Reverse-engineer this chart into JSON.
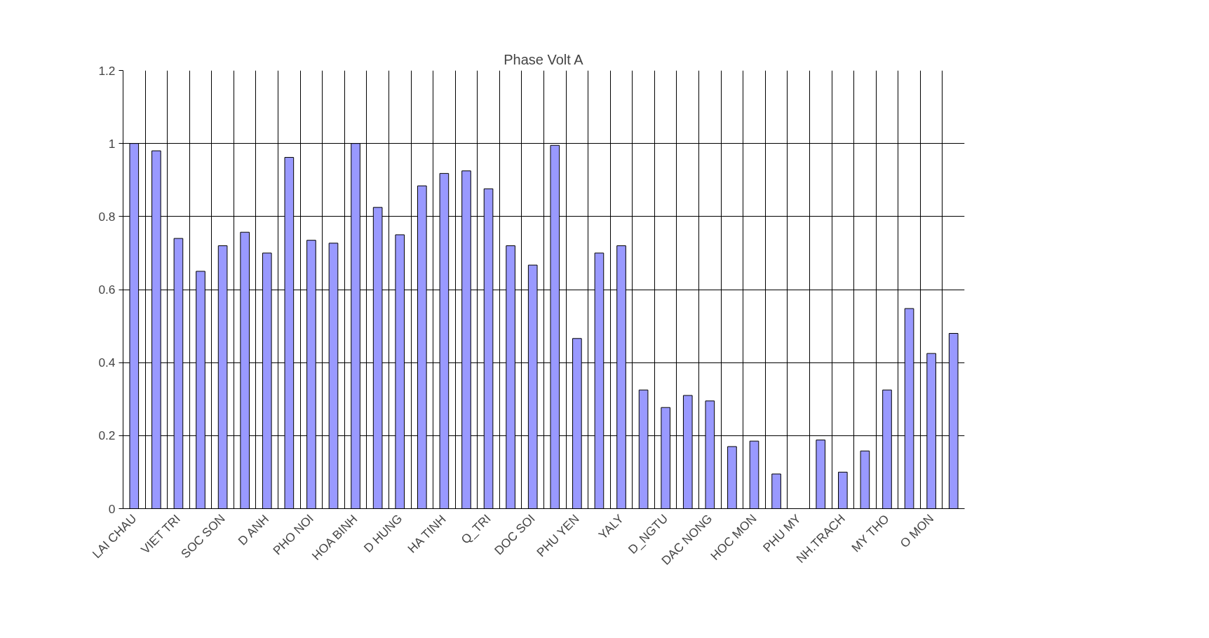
{
  "chart_data": {
    "type": "bar",
    "title": "Phase Volt A",
    "categories": [
      "LAI CHAU",
      null,
      "VIET TRI",
      null,
      "SOC SON",
      null,
      "D ANH",
      null,
      "PHO NOI",
      null,
      "HOA BINH",
      null,
      "D HUNG",
      null,
      "HA TINH",
      null,
      "Q_TRI",
      null,
      "DOC SOI",
      null,
      "PHU YEN",
      null,
      "YALY",
      null,
      "D_NGTU",
      null,
      "DAC NONG",
      null,
      "HOC MON",
      null,
      "PHU MY",
      null,
      "NH.TRACH",
      null,
      "MY THO",
      null,
      "O MON",
      null
    ],
    "values": [
      1.0,
      0.98,
      0.74,
      0.65,
      0.72,
      0.757,
      0.7,
      0.962,
      0.735,
      0.727,
      1.0,
      0.825,
      0.75,
      0.884,
      0.918,
      0.925,
      0.876,
      0.72,
      0.667,
      0.995,
      0.466,
      0.7,
      0.72,
      0.325,
      0.277,
      0.31,
      0.295,
      0.17,
      0.185,
      0.095,
      null,
      0.188,
      0.1,
      0.158,
      0.325,
      0.548,
      0.425,
      0.48
    ],
    "color": "#9999ff",
    "ylim": [
      0,
      1.2
    ],
    "yticks": [
      0,
      0.2,
      0.4,
      0.6,
      0.8,
      1,
      1.2
    ],
    "grid": true
  }
}
